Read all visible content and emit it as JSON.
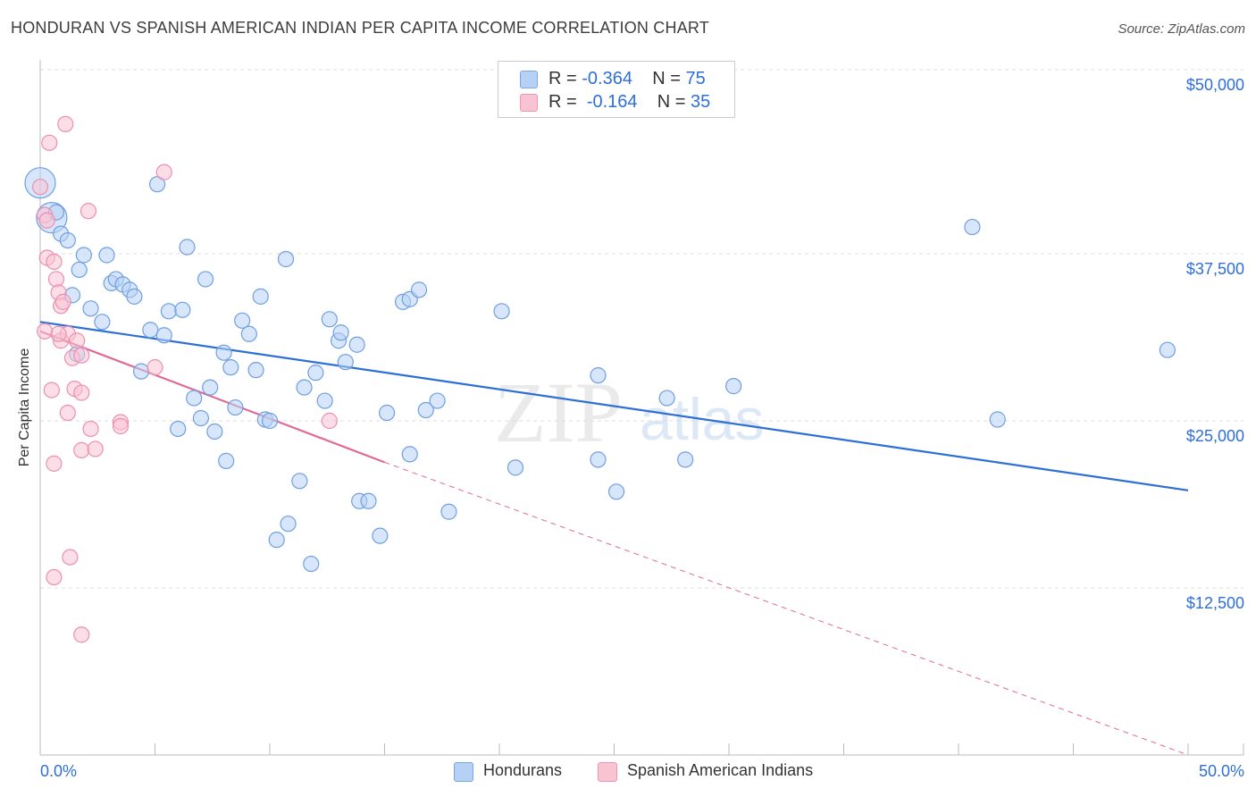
{
  "title": "HONDURAN VS SPANISH AMERICAN INDIAN PER CAPITA INCOME CORRELATION CHART",
  "source": "Source: ZipAtlas.com",
  "colors": {
    "blue": "#2e6fd6",
    "blue_fill": "#b7d1f5",
    "pink": "#e06a96",
    "pink_fill": "#f9c3d4",
    "grid": "#dddddd",
    "axis_text": "#2e6fd6"
  },
  "legend": {
    "r_label": "R =",
    "n_label": "N =",
    "rows": [
      {
        "r": "-0.364",
        "n": "75"
      },
      {
        "r": "-0.164",
        "n": "35"
      }
    ]
  },
  "watermark": {
    "zip": "ZIP",
    "atlas": "atlas"
  },
  "chart_data": {
    "type": "scatter",
    "title": "HONDURAN VS SPANISH AMERICAN INDIAN PER CAPITA INCOME CORRELATION CHART",
    "xlabel": "",
    "ylabel": "Per Capita Income",
    "xlim": [
      0,
      50
    ],
    "ylim": [
      0,
      51000
    ],
    "x_tick_labels": [
      "0.0%",
      "50.0%"
    ],
    "y_ticks": [
      12500,
      25000,
      37500,
      50000
    ],
    "y_tick_labels": [
      "$12,500",
      "$25,000",
      "$37,500",
      "$50,000"
    ],
    "grid": true,
    "legend_position": "top-center",
    "series": [
      {
        "name": "Hondurans",
        "r": -0.364,
        "n": 75,
        "trend": {
          "x": [
            0,
            50
          ],
          "y": [
            32400,
            19800
          ]
        },
        "points": [
          {
            "x": 0.0,
            "y": 42800,
            "big": true
          },
          {
            "x": 0.5,
            "y": 40200,
            "big": true
          },
          {
            "x": 0.7,
            "y": 40600
          },
          {
            "x": 0.9,
            "y": 39000
          },
          {
            "x": 1.2,
            "y": 38500
          },
          {
            "x": 1.7,
            "y": 36300
          },
          {
            "x": 1.9,
            "y": 37400
          },
          {
            "x": 2.9,
            "y": 37400
          },
          {
            "x": 1.4,
            "y": 34400
          },
          {
            "x": 2.2,
            "y": 33400
          },
          {
            "x": 2.7,
            "y": 32400
          },
          {
            "x": 3.1,
            "y": 35300
          },
          {
            "x": 3.3,
            "y": 35600
          },
          {
            "x": 3.6,
            "y": 35200
          },
          {
            "x": 3.9,
            "y": 34800
          },
          {
            "x": 4.1,
            "y": 34300
          },
          {
            "x": 4.8,
            "y": 31800
          },
          {
            "x": 5.1,
            "y": 42700
          },
          {
            "x": 5.6,
            "y": 33200
          },
          {
            "x": 5.4,
            "y": 31400
          },
          {
            "x": 6.2,
            "y": 33300
          },
          {
            "x": 6.0,
            "y": 24400
          },
          {
            "x": 6.4,
            "y": 38000
          },
          {
            "x": 6.7,
            "y": 26700
          },
          {
            "x": 7.0,
            "y": 25200
          },
          {
            "x": 7.2,
            "y": 35600
          },
          {
            "x": 7.4,
            "y": 27500
          },
          {
            "x": 7.6,
            "y": 24200
          },
          {
            "x": 8.1,
            "y": 22000
          },
          {
            "x": 8.0,
            "y": 30100
          },
          {
            "x": 8.3,
            "y": 29000
          },
          {
            "x": 8.5,
            "y": 26000
          },
          {
            "x": 8.8,
            "y": 32500
          },
          {
            "x": 9.1,
            "y": 31500
          },
          {
            "x": 9.4,
            "y": 28800
          },
          {
            "x": 9.6,
            "y": 34300
          },
          {
            "x": 9.8,
            "y": 25100
          },
          {
            "x": 10.0,
            "y": 25000
          },
          {
            "x": 10.3,
            "y": 16100
          },
          {
            "x": 10.7,
            "y": 37100
          },
          {
            "x": 10.8,
            "y": 17300
          },
          {
            "x": 11.5,
            "y": 27500
          },
          {
            "x": 11.3,
            "y": 20500
          },
          {
            "x": 11.8,
            "y": 14300
          },
          {
            "x": 12.0,
            "y": 28600
          },
          {
            "x": 12.4,
            "y": 26500
          },
          {
            "x": 12.6,
            "y": 32600
          },
          {
            "x": 13.0,
            "y": 31000
          },
          {
            "x": 13.1,
            "y": 31600
          },
          {
            "x": 13.3,
            "y": 29400
          },
          {
            "x": 13.8,
            "y": 30700
          },
          {
            "x": 13.9,
            "y": 19000
          },
          {
            "x": 14.3,
            "y": 19000
          },
          {
            "x": 14.8,
            "y": 16400
          },
          {
            "x": 15.1,
            "y": 25600
          },
          {
            "x": 15.8,
            "y": 33900
          },
          {
            "x": 16.1,
            "y": 34100
          },
          {
            "x": 16.1,
            "y": 22500
          },
          {
            "x": 16.8,
            "y": 25800
          },
          {
            "x": 16.5,
            "y": 34800
          },
          {
            "x": 17.3,
            "y": 26500
          },
          {
            "x": 17.8,
            "y": 18200
          },
          {
            "x": 20.1,
            "y": 33200
          },
          {
            "x": 20.7,
            "y": 21500
          },
          {
            "x": 24.3,
            "y": 28400
          },
          {
            "x": 24.3,
            "y": 22100
          },
          {
            "x": 25.1,
            "y": 19700
          },
          {
            "x": 27.3,
            "y": 26700
          },
          {
            "x": 28.1,
            "y": 22100
          },
          {
            "x": 30.2,
            "y": 27600
          },
          {
            "x": 40.6,
            "y": 39500
          },
          {
            "x": 41.7,
            "y": 25100
          },
          {
            "x": 49.1,
            "y": 30300
          },
          {
            "x": 1.6,
            "y": 30000
          },
          {
            "x": 4.4,
            "y": 28700
          }
        ]
      },
      {
        "name": "Spanish American Indians",
        "r": -0.164,
        "n": 35,
        "trend": {
          "x": [
            0,
            15
          ],
          "y": [
            31700,
            21900
          ]
        },
        "trend_dashed": {
          "x": [
            15,
            50
          ],
          "y": [
            21900,
            0
          ]
        },
        "points": [
          {
            "x": 0.0,
            "y": 42500
          },
          {
            "x": 0.2,
            "y": 40400
          },
          {
            "x": 0.3,
            "y": 40000
          },
          {
            "x": 0.4,
            "y": 45800
          },
          {
            "x": 1.1,
            "y": 47200
          },
          {
            "x": 0.3,
            "y": 37200
          },
          {
            "x": 0.6,
            "y": 36900
          },
          {
            "x": 0.7,
            "y": 35600
          },
          {
            "x": 0.8,
            "y": 34600
          },
          {
            "x": 0.9,
            "y": 33600
          },
          {
            "x": 1.0,
            "y": 33900
          },
          {
            "x": 0.2,
            "y": 31700
          },
          {
            "x": 0.9,
            "y": 31000
          },
          {
            "x": 1.2,
            "y": 31500
          },
          {
            "x": 1.6,
            "y": 31000
          },
          {
            "x": 1.4,
            "y": 29700
          },
          {
            "x": 1.8,
            "y": 29900
          },
          {
            "x": 0.5,
            "y": 27300
          },
          {
            "x": 1.5,
            "y": 27400
          },
          {
            "x": 1.8,
            "y": 27100
          },
          {
            "x": 1.2,
            "y": 25600
          },
          {
            "x": 2.2,
            "y": 24400
          },
          {
            "x": 3.5,
            "y": 24900
          },
          {
            "x": 3.5,
            "y": 24600
          },
          {
            "x": 1.8,
            "y": 22800
          },
          {
            "x": 2.4,
            "y": 22900
          },
          {
            "x": 0.6,
            "y": 21800
          },
          {
            "x": 5.0,
            "y": 29000
          },
          {
            "x": 5.4,
            "y": 43600
          },
          {
            "x": 2.1,
            "y": 40700
          },
          {
            "x": 12.6,
            "y": 25000
          },
          {
            "x": 1.3,
            "y": 14800
          },
          {
            "x": 0.6,
            "y": 13300
          },
          {
            "x": 1.8,
            "y": 9000
          },
          {
            "x": 0.8,
            "y": 31500
          }
        ]
      }
    ]
  }
}
